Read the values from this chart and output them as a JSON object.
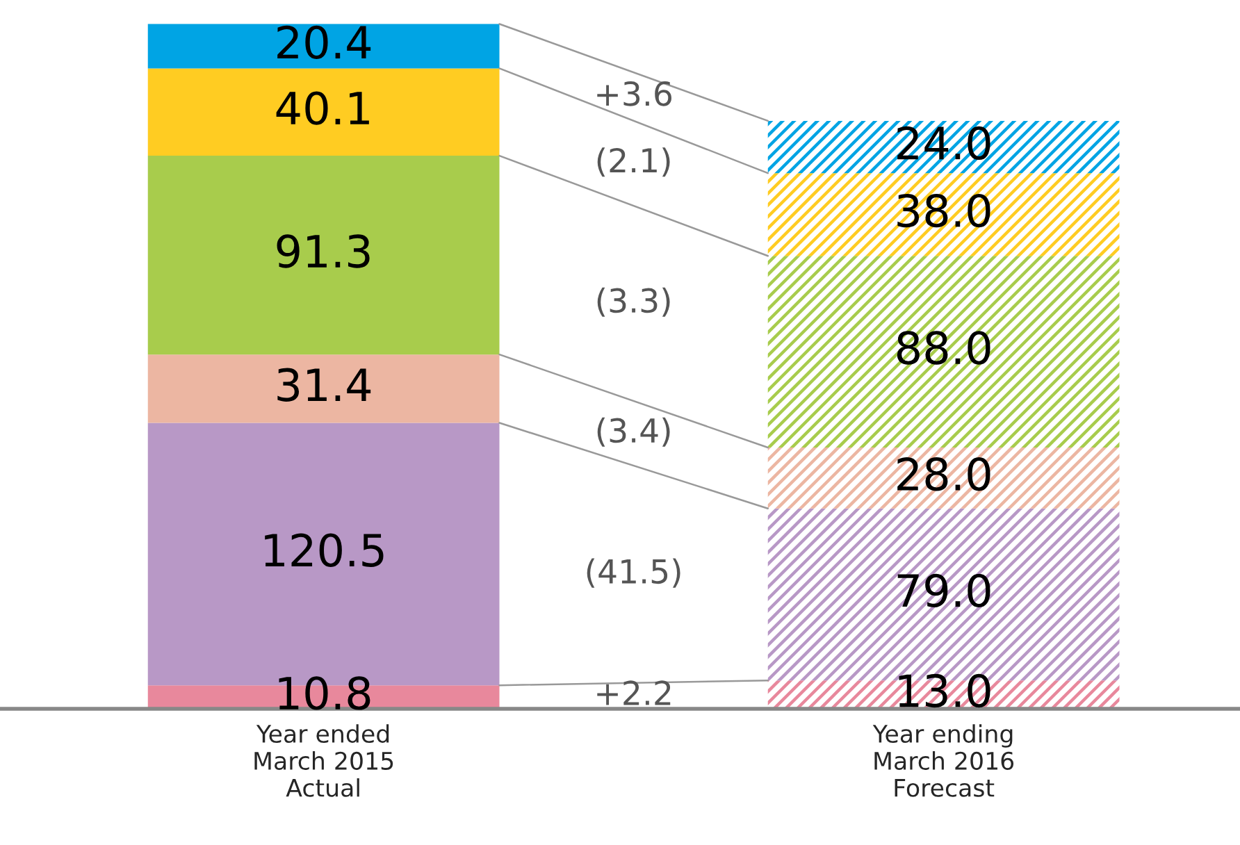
{
  "chart_data": {
    "type": "bar",
    "stacked": true,
    "categories": [
      "Year ended\nMarch 2015\nActual",
      "Year ending\nMarch 2016\nForecast"
    ],
    "series": [
      {
        "color": "#e8889c",
        "values": [
          10.8,
          13.0
        ],
        "value_labels": [
          "10.8",
          "13.0"
        ]
      },
      {
        "color": "#b898c6",
        "values": [
          120.5,
          79.0
        ],
        "value_labels": [
          "120.5",
          "79.0"
        ]
      },
      {
        "color": "#ecb6a2",
        "values": [
          31.4,
          28.0
        ],
        "value_labels": [
          "31.4",
          "28.0"
        ]
      },
      {
        "color": "#a8cc4c",
        "values": [
          91.3,
          88.0
        ],
        "value_labels": [
          "91.3",
          "88.0"
        ]
      },
      {
        "color": "#ffcc22",
        "values": [
          40.1,
          38.0
        ],
        "value_labels": [
          "40.1",
          "38.0"
        ]
      },
      {
        "color": "#00a4e4",
        "values": [
          20.4,
          24.0
        ],
        "value_labels": [
          "20.4",
          "24.0"
        ]
      }
    ],
    "annotations": [
      "+2.2",
      "(41.5)",
      "(3.4)",
      "(3.3)",
      "(2.1)",
      "+3.6"
    ]
  }
}
